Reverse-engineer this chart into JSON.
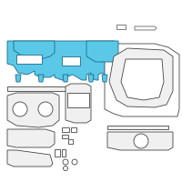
{
  "bg_color": "#f0f0f0",
  "highlight_color": "#5bc8e8",
  "highlight_edge": "#1a6a8a",
  "gray_color": "#aaaaaa",
  "gray_edge": "#666666",
  "dark_edge": "#444444",
  "white_bg": "#ffffff"
}
